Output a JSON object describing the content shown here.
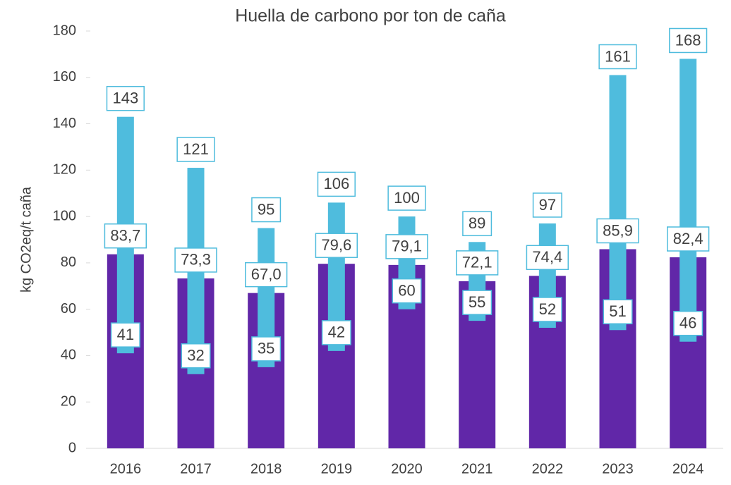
{
  "chart_data": {
    "type": "bar",
    "title": "Huella de carbono por ton de caña",
    "ylabel": "kg CO2eq/t caña",
    "categories": [
      "2016",
      "2017",
      "2018",
      "2019",
      "2020",
      "2021",
      "2022",
      "2023",
      "2024"
    ],
    "ylim": [
      0,
      180
    ],
    "yticks": [
      0,
      20,
      40,
      60,
      80,
      100,
      120,
      140,
      160,
      180
    ],
    "series": [
      {
        "color": "#6127a8",
        "values": [
          83.7,
          73.3,
          67.0,
          79.6,
          79.1,
          72.1,
          74.4,
          85.9,
          82.4
        ],
        "value_labels": [
          "83,7",
          "73,3",
          "67,0",
          "79,6",
          "79,1",
          "72,1",
          "74,4",
          "85,9",
          "82,4"
        ]
      },
      {
        "color": "#4fbcdd",
        "low": [
          41,
          32,
          35,
          42,
          60,
          55,
          52,
          51,
          46
        ],
        "high": [
          143,
          121,
          95,
          106,
          100,
          89,
          97,
          161,
          168
        ]
      }
    ]
  }
}
